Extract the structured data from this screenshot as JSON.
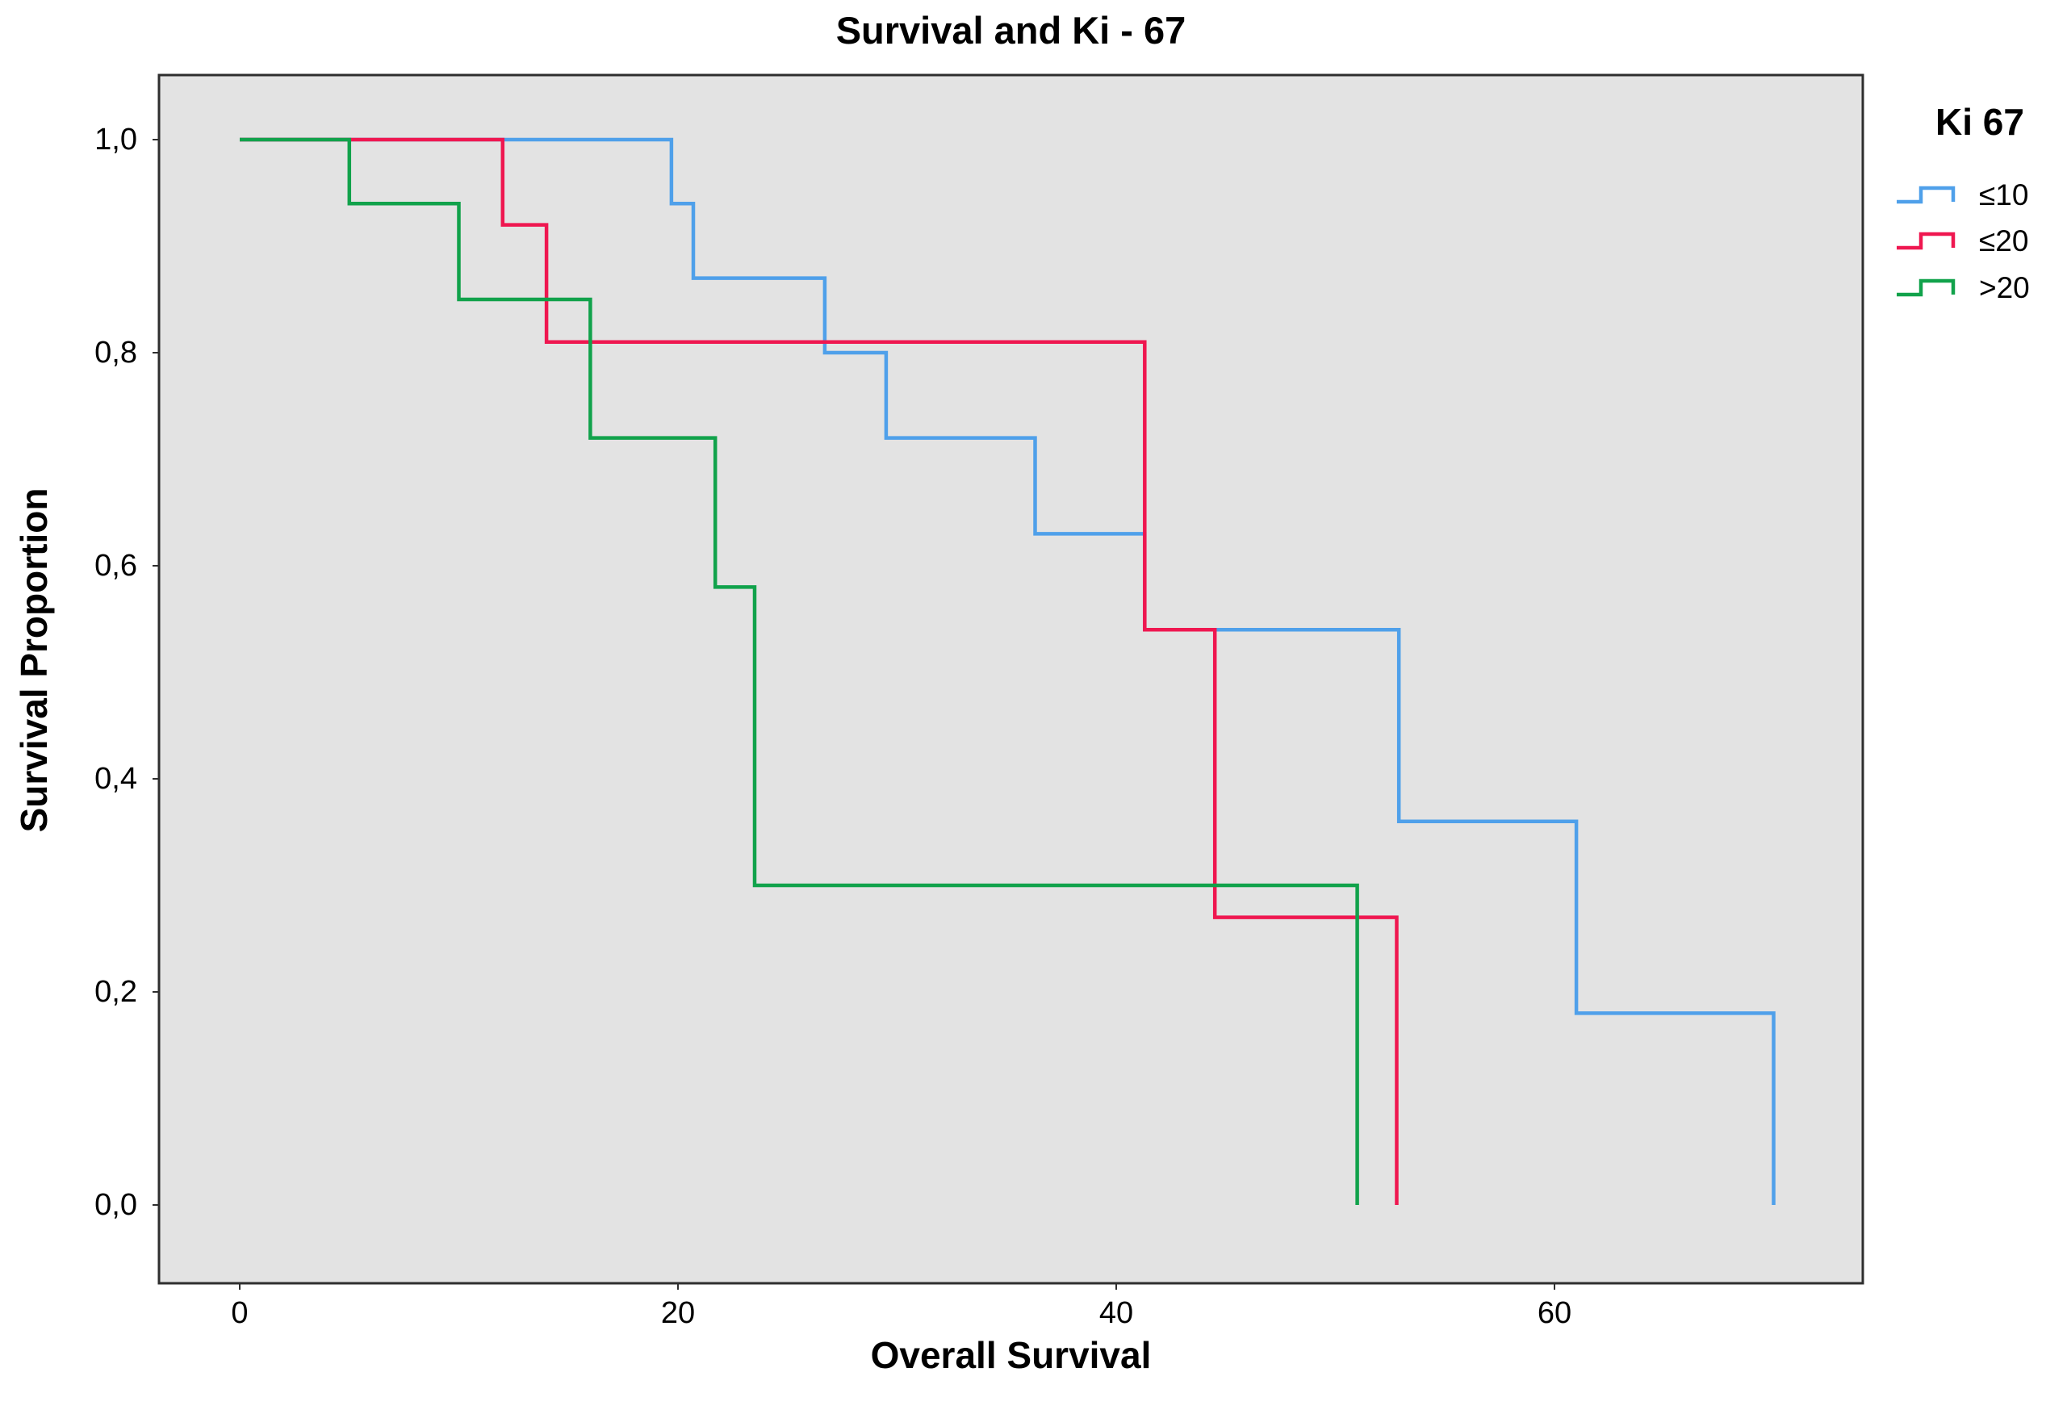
{
  "title": "Survival and Ki - 67",
  "x_axis": {
    "label": "Overall Survival",
    "ticks": [
      {
        "label": "0",
        "value": 0
      },
      {
        "label": "20",
        "value": 20
      },
      {
        "label": "40",
        "value": 40
      },
      {
        "label": "60",
        "value": 60
      }
    ]
  },
  "y_axis": {
    "label": "Survival Proportion",
    "ticks": [
      {
        "label": "1,0",
        "value": 1.0
      },
      {
        "label": "0,8",
        "value": 0.8
      },
      {
        "label": "0,6",
        "value": 0.6
      },
      {
        "label": "0,4",
        "value": 0.4
      },
      {
        "label": "0,2",
        "value": 0.2
      },
      {
        "label": "0,0",
        "value": 0.0
      }
    ]
  },
  "legend": {
    "title": "Ki 67",
    "items": [
      {
        "label": "≤10",
        "color": "#4FA0EA"
      },
      {
        "label": "≤20",
        "color": "#EF1750"
      },
      {
        "label": ">20",
        "color": "#11A24B"
      }
    ]
  },
  "colors": {
    "plot_background": "#E3E3E3",
    "plot_border": "#2E2E2E",
    "outer_background": "#FFFFFF",
    "series_le10": "#4FA0EA",
    "series_le20": "#EF1750",
    "series_gt20": "#11A24B"
  },
  "chart_data": {
    "type": "line",
    "subtype": "kaplan-meier-step",
    "title": "Survival and Ki - 67",
    "xlabel": "Overall Survival",
    "ylabel": "Survival Proportion",
    "xlim": [
      -3.7,
      74.1
    ],
    "ylim": [
      -0.07,
      1.06
    ],
    "grid": false,
    "legend_position": "top-right-outside",
    "series": [
      {
        "name": "≤10",
        "color": "#4FA0EA",
        "points": [
          [
            0,
            1.0
          ],
          [
            19.7,
            1.0
          ],
          [
            19.7,
            0.94
          ],
          [
            20.7,
            0.94
          ],
          [
            20.7,
            0.87
          ],
          [
            26.7,
            0.87
          ],
          [
            26.7,
            0.8
          ],
          [
            29.5,
            0.8
          ],
          [
            29.5,
            0.72
          ],
          [
            36.3,
            0.72
          ],
          [
            36.3,
            0.63
          ],
          [
            41.3,
            0.63
          ],
          [
            41.3,
            0.54
          ],
          [
            52.9,
            0.54
          ],
          [
            52.9,
            0.36
          ],
          [
            61,
            0.36
          ],
          [
            61,
            0.18
          ],
          [
            70,
            0.18
          ],
          [
            70,
            0.0
          ]
        ]
      },
      {
        "name": "≤20",
        "color": "#EF1750",
        "points": [
          [
            0,
            1.0
          ],
          [
            12,
            1.0
          ],
          [
            12,
            0.92
          ],
          [
            14,
            0.92
          ],
          [
            14,
            0.81
          ],
          [
            41.3,
            0.81
          ],
          [
            41.3,
            0.54
          ],
          [
            44.5,
            0.54
          ],
          [
            44.5,
            0.27
          ],
          [
            52.8,
            0.27
          ],
          [
            52.8,
            0.0
          ]
        ]
      },
      {
        "name": ">20",
        "color": "#11A24B",
        "points": [
          [
            0,
            1.0
          ],
          [
            5,
            1.0
          ],
          [
            5,
            0.94
          ],
          [
            10,
            0.94
          ],
          [
            10,
            0.85
          ],
          [
            16,
            0.85
          ],
          [
            16,
            0.72
          ],
          [
            21.7,
            0.72
          ],
          [
            21.7,
            0.58
          ],
          [
            23.5,
            0.58
          ],
          [
            23.5,
            0.3
          ],
          [
            51,
            0.3
          ],
          [
            51,
            0.0
          ]
        ]
      }
    ]
  }
}
